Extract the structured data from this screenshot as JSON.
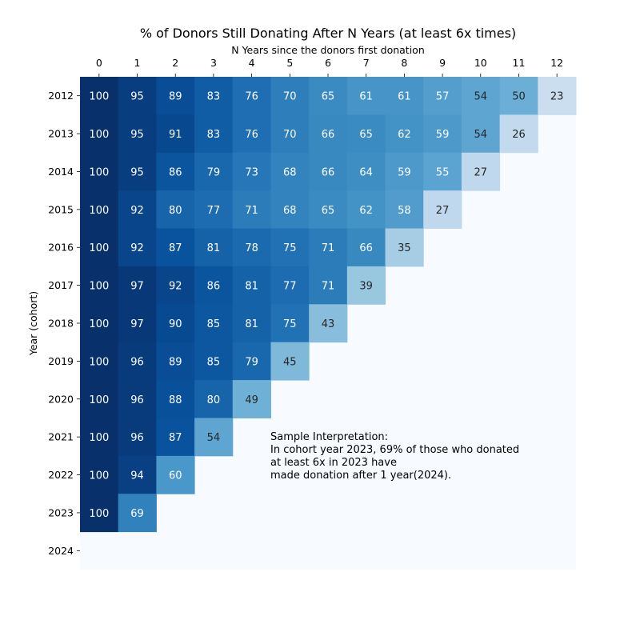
{
  "chart_data": {
    "type": "heatmap",
    "title": "% of Donors Still Donating After N Years (at least 6x times)",
    "xlabel": "N Years since the donors first donation",
    "ylabel": "Year (cohort)",
    "x_ticks": [
      "0",
      "1",
      "2",
      "3",
      "4",
      "5",
      "6",
      "7",
      "8",
      "9",
      "10",
      "11",
      "12"
    ],
    "y_ticks": [
      "2012",
      "2013",
      "2014",
      "2015",
      "2016",
      "2017",
      "2018",
      "2019",
      "2020",
      "2021",
      "2022",
      "2023",
      "2024"
    ],
    "values": [
      [
        100,
        95,
        89,
        83,
        76,
        70,
        65,
        61,
        61,
        57,
        54,
        50,
        23
      ],
      [
        100,
        95,
        91,
        83,
        76,
        70,
        66,
        65,
        62,
        59,
        54,
        26
      ],
      [
        100,
        95,
        86,
        79,
        73,
        68,
        66,
        64,
        59,
        55,
        27
      ],
      [
        100,
        92,
        80,
        77,
        71,
        68,
        65,
        62,
        58,
        27
      ],
      [
        100,
        92,
        87,
        81,
        78,
        75,
        71,
        66,
        35
      ],
      [
        100,
        97,
        92,
        86,
        81,
        77,
        71,
        39
      ],
      [
        100,
        97,
        90,
        85,
        81,
        75,
        43
      ],
      [
        100,
        96,
        89,
        85,
        79,
        45
      ],
      [
        100,
        96,
        88,
        80,
        49
      ],
      [
        100,
        96,
        87,
        54
      ],
      [
        100,
        94,
        60
      ],
      [
        100,
        69
      ],
      []
    ],
    "colormap": "Blues",
    "vmin": 0,
    "vmax": 100,
    "x_axis_position": "top",
    "annotation": [
      "Sample Interpretation:",
      "In cohort year 2023, 69% of those who donated",
      "at least 6x in 2023 have",
      "made donation after 1 year(2024)."
    ]
  }
}
